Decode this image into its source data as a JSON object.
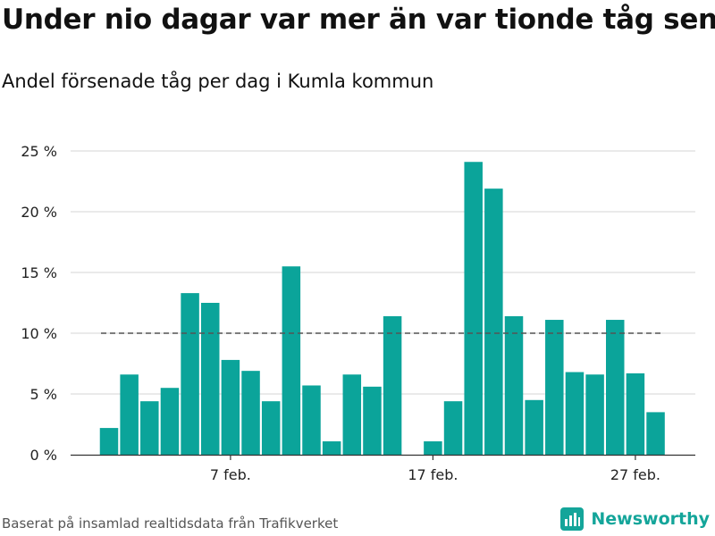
{
  "title": "Under nio dagar var mer än var tionde tåg sent",
  "subtitle": "Andel försenade tåg per dag i Kumla kommun",
  "source": "Baserat på insamlad realtidsdata från Trafikverket",
  "brand": {
    "name": "Newsworthy",
    "icon": "newsworthy-logo-icon"
  },
  "colors": {
    "bar": "#0ba49a",
    "reference_line": "#555555",
    "brand": "#14a59a"
  },
  "chart_data": {
    "type": "bar",
    "x": [
      "2024-02-01",
      "2024-02-02",
      "2024-02-03",
      "2024-02-04",
      "2024-02-05",
      "2024-02-06",
      "2024-02-07",
      "2024-02-08",
      "2024-02-09",
      "2024-02-10",
      "2024-02-11",
      "2024-02-12",
      "2024-02-13",
      "2024-02-14",
      "2024-02-15",
      "2024-02-16",
      "2024-02-17",
      "2024-02-18",
      "2024-02-19",
      "2024-02-20",
      "2024-02-21",
      "2024-02-22",
      "2024-02-23",
      "2024-02-24",
      "2024-02-25",
      "2024-02-26",
      "2024-02-27",
      "2024-02-28"
    ],
    "values": [
      2.2,
      6.6,
      4.4,
      5.5,
      13.3,
      12.5,
      7.8,
      6.9,
      4.4,
      15.5,
      5.7,
      1.1,
      6.6,
      5.6,
      11.4,
      0,
      1.1,
      4.4,
      24.1,
      21.9,
      11.4,
      4.5,
      11.1,
      6.8,
      6.6,
      11.1,
      6.7,
      3.5
    ],
    "reference_line": 10,
    "ylim": [
      0,
      25
    ],
    "y_ticks": [
      "0 %",
      "5 %",
      "10 %",
      "15 %",
      "20 %",
      "25 %"
    ],
    "y_tick_values": [
      0,
      5,
      10,
      15,
      20,
      25
    ],
    "x_ticks": [
      "7 feb.",
      "17 feb.",
      "27 feb."
    ],
    "x_tick_dates": [
      "2024-02-07",
      "2024-02-17",
      "2024-02-27"
    ],
    "grid": true,
    "xlabel": "",
    "ylabel": ""
  }
}
